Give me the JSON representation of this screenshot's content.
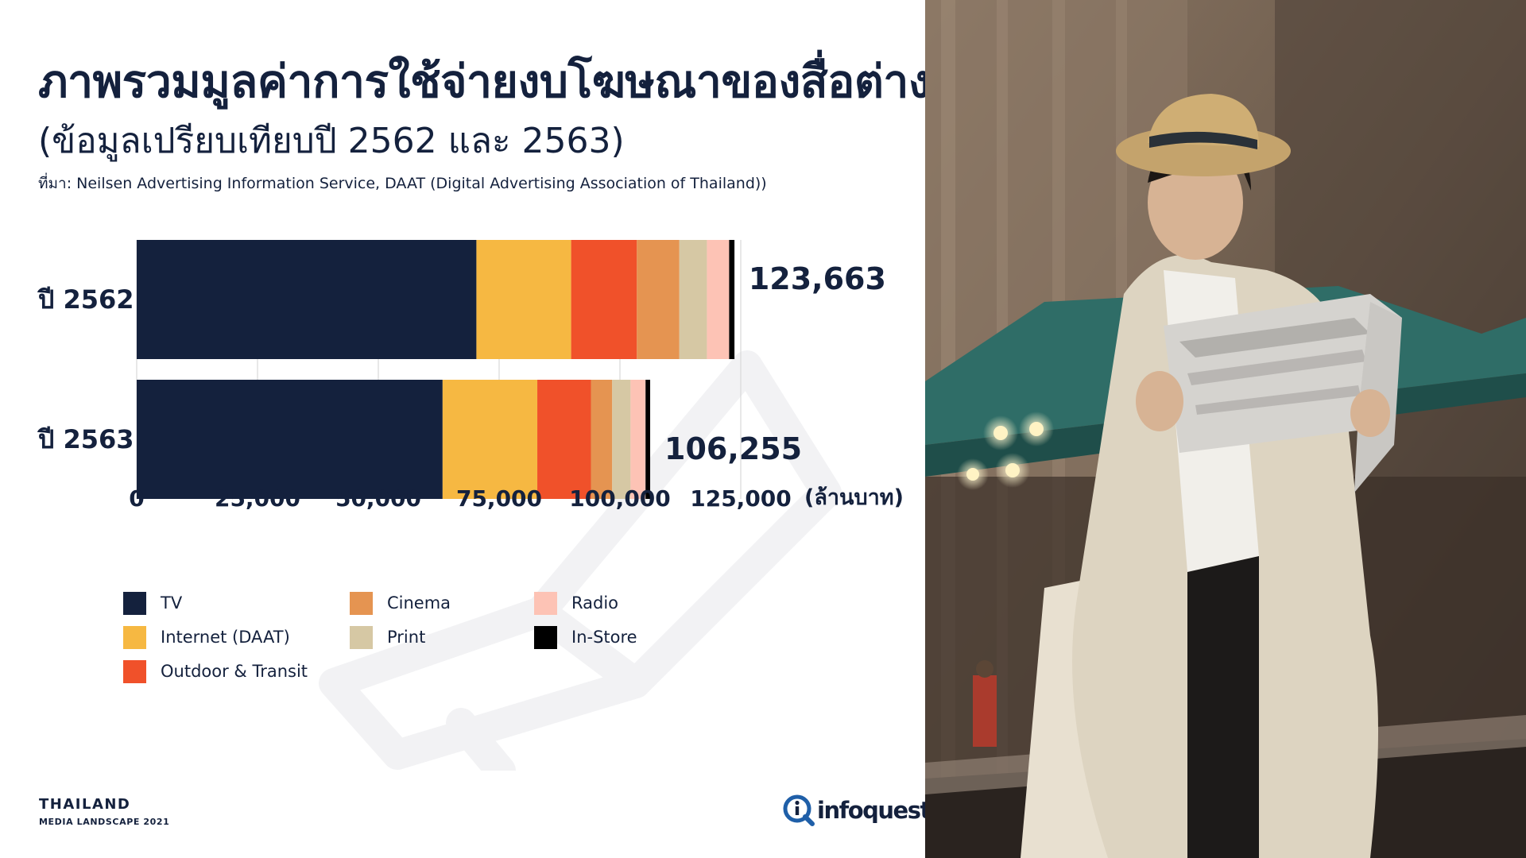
{
  "header": {
    "title": "ภาพรวมมูลค่าการใช้จ่ายงบโฆษณาของสื่อต่างๆ",
    "subtitle": "(ข้อมูลเปรียบเทียบปี 2562 และ 2563)",
    "source": "ที่มา: Neilsen Advertising Information Service, DAAT (Digital Advertising Association of Thailand))"
  },
  "chart_data": {
    "type": "bar",
    "orientation": "horizontal",
    "stacked": true,
    "categories": [
      "ปี 2562",
      "ปี 2563"
    ],
    "totals": [
      "123,663",
      "106,255"
    ],
    "total_values": [
      123663,
      106255
    ],
    "series": [
      {
        "name": "TV",
        "color": "#14213d",
        "values": [
          70300,
          63300
        ]
      },
      {
        "name": "Internet (DAAT)",
        "color": "#f6b842",
        "values": [
          19600,
          19600
        ]
      },
      {
        "name": "Outdoor & Transit",
        "color": "#f0512a",
        "values": [
          13600,
          11100
        ]
      },
      {
        "name": "Cinema",
        "color": "#e59451",
        "values": [
          8800,
          4400
        ]
      },
      {
        "name": "Print",
        "color": "#d6c8a4",
        "values": [
          5700,
          3800
        ]
      },
      {
        "name": "Radio",
        "color": "#fdc3b5",
        "values": [
          4600,
          3100
        ]
      },
      {
        "name": "In-Store",
        "color": "#000000",
        "values": [
          1100,
          955
        ]
      }
    ],
    "xticks": [
      "0",
      "25,000",
      "50,000",
      "75,000",
      "100,000",
      "125,000"
    ],
    "xtick_values": [
      0,
      25000,
      50000,
      75000,
      100000,
      125000
    ],
    "xlim": [
      0,
      125000
    ],
    "xunit": "(ล้านบาท)",
    "grid": true,
    "legend_position": "bottom-left"
  },
  "legend": [
    {
      "label": "TV",
      "color": "#14213d"
    },
    {
      "label": "Internet (DAAT)",
      "color": "#f6b842"
    },
    {
      "label": "Outdoor & Transit",
      "color": "#f0512a"
    },
    {
      "label": "Cinema",
      "color": "#e59451"
    },
    {
      "label": "Print",
      "color": "#d6c8a4"
    },
    {
      "label": "Radio",
      "color": "#fdc3b5"
    },
    {
      "label": "In-Store",
      "color": "#000000"
    }
  ],
  "footer": {
    "country": "THAILAND",
    "subtitle": "MEDIA LANDSCAPE 2021",
    "brand": "infoquest"
  }
}
